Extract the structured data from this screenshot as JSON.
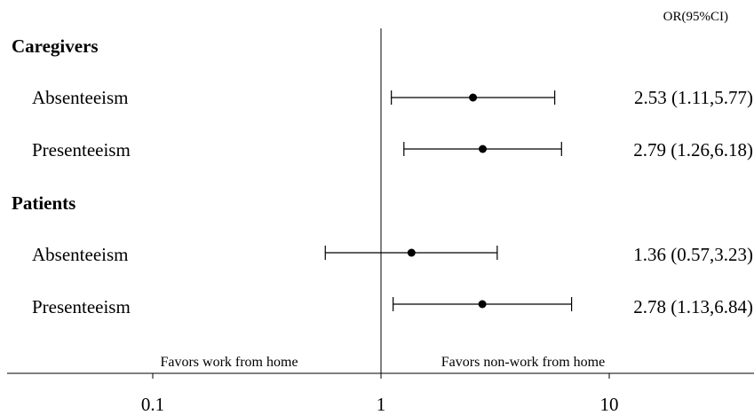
{
  "chart_data": {
    "type": "forest",
    "x_scale": "log",
    "xlim": [
      0.025,
      40
    ],
    "x_ticks": [
      {
        "value": 0.1,
        "label": "0.1"
      },
      {
        "value": 1,
        "label": "1"
      },
      {
        "value": 10,
        "label": "10"
      }
    ],
    "reference_line": 1,
    "header": "OR(95%CI)",
    "favors_left": "Favors work from home",
    "favors_right": "Favors non-work from home",
    "groups": [
      {
        "label": "Caregivers",
        "rows": [
          {
            "label": "Absenteeism",
            "or": 2.53,
            "lower": 1.11,
            "upper": 5.77,
            "text": "2.53 (1.11,5.77)"
          },
          {
            "label": "Presenteeism",
            "or": 2.79,
            "lower": 1.26,
            "upper": 6.18,
            "text": "2.79 (1.26,6.18)"
          }
        ]
      },
      {
        "label": "Patients",
        "rows": [
          {
            "label": "Absenteeism",
            "or": 1.36,
            "lower": 0.57,
            "upper": 3.23,
            "text": "1.36 (0.57,3.23)"
          },
          {
            "label": "Presenteeism",
            "or": 2.78,
            "lower": 1.13,
            "upper": 6.84,
            "text": "2.78 (1.13,6.84)"
          }
        ]
      }
    ]
  }
}
